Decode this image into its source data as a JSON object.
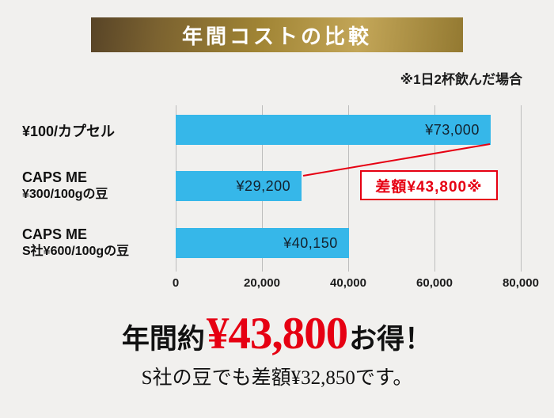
{
  "banner": {
    "title": "年間コストの比較"
  },
  "note": "※1日2杯飲んだ場合",
  "chart_data": {
    "type": "bar",
    "orientation": "horizontal",
    "title": "年間コストの比較",
    "categories": [
      "¥100/カプセル",
      "CAPS ME ¥300/100gの豆",
      "CAPS ME S社¥600/100gの豆"
    ],
    "values": [
      73000,
      29200,
      40150
    ],
    "value_labels": [
      "¥73,000",
      "¥29,200",
      "¥40,150"
    ],
    "xlim": [
      0,
      80000
    ],
    "x_ticks": [
      "0",
      "20,000",
      "40,000",
      "60,000",
      "80,000"
    ],
    "bar_color": "#36b7e9",
    "grid": true,
    "legend": false,
    "annotation": "差額¥43,800※"
  },
  "row_labels": {
    "r1a": "¥100/カプセル",
    "r2a": "CAPS ME",
    "r2b": "¥300/100gの豆",
    "r3a": "CAPS ME",
    "r3b": "S社¥600/100gの豆"
  },
  "callout": {
    "text": "差額¥43,800※"
  },
  "footer": {
    "prefix": "年間約",
    "amount": "¥43,800",
    "suffix": "お得！",
    "subline": "S社の豆でも差額¥32,850です。"
  },
  "colors": {
    "bar": "#36b7e9",
    "accent_red": "#e60012",
    "banner_gold": "#a08434",
    "background": "#f1f0ee"
  }
}
